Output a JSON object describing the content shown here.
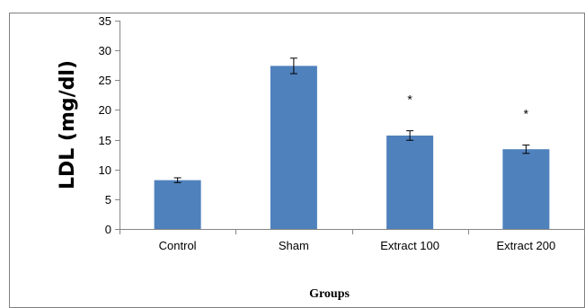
{
  "chart_data": {
    "type": "bar",
    "categories": [
      "Control",
      "Sham",
      "Extract 100",
      "Extract 200"
    ],
    "values": [
      8.2,
      27.4,
      15.7,
      13.4
    ],
    "errors": [
      0.4,
      1.3,
      0.8,
      0.7
    ],
    "annotations": [
      "",
      "",
      "*",
      "*"
    ],
    "xlabel": "Groups",
    "ylabel": "LDL (mg/dl)",
    "ylim": [
      0,
      35
    ],
    "yticks": [
      0,
      5,
      10,
      15,
      20,
      25,
      30,
      35
    ],
    "grid": false,
    "bar_color": "#4f81bd",
    "frame_color": "#7f7f7f"
  }
}
